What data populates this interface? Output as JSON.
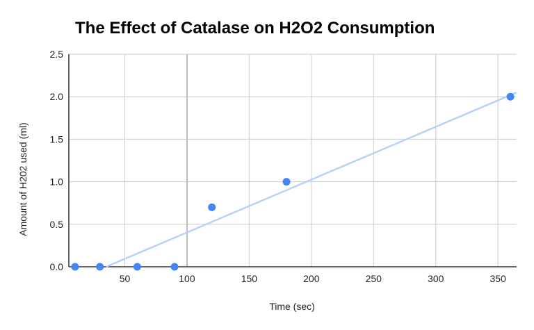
{
  "chart_data": {
    "type": "scatter",
    "title": "The Effect of Catalase on H2O2 Consumption",
    "xlabel": "Time (sec)",
    "ylabel": "Amount of H202 used (ml)",
    "xlim": [
      5,
      365
    ],
    "ylim": [
      0,
      2.5
    ],
    "xticks": [
      50,
      100,
      150,
      200,
      250,
      300,
      350
    ],
    "yticks": [
      "0.0",
      "0.5",
      "1.0",
      "1.5",
      "2.0",
      "2.5"
    ],
    "grid": true,
    "legend": "none",
    "points": [
      {
        "x": 10,
        "y": 0.0
      },
      {
        "x": 30,
        "y": 0.0
      },
      {
        "x": 60,
        "y": 0.0
      },
      {
        "x": 90,
        "y": 0.0
      },
      {
        "x": 120,
        "y": 0.7
      },
      {
        "x": 180,
        "y": 1.0
      },
      {
        "x": 360,
        "y": 2.0
      }
    ],
    "trendline": {
      "type": "linear",
      "from": [
        35,
        0.0
      ],
      "to": [
        365,
        2.05
      ]
    },
    "colors": {
      "point": "#4285f4",
      "trendline": "#b7d2f5",
      "grid": "#cccccc"
    }
  }
}
